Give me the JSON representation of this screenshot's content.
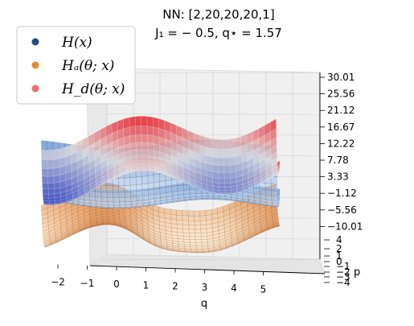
{
  "chart_data": {
    "type": "surface3d",
    "title_line1": "NN: [2,20,20,20,1]",
    "title_line2": "J₁ = − 0.5, q⋆ = 1.57",
    "xlabel": "q",
    "ylabel": "p",
    "zlabel": "",
    "xlim": [
      -2.5,
      5.5
    ],
    "ylim": [
      -4,
      4
    ],
    "zlim": [
      -10.01,
      30.01
    ],
    "x_ticks": [
      "−2",
      "−1",
      "0",
      "1",
      "2",
      "3",
      "4",
      "5"
    ],
    "p_ticks": [
      "4",
      "2",
      "1",
      "0",
      "−1",
      "−2",
      "−3",
      "−4"
    ],
    "z_ticks": [
      "30.01",
      "25.56",
      "21.12",
      "16.67",
      "12.22",
      "7.78",
      "3.33",
      "−1.12",
      "−5.56",
      "−10.01"
    ],
    "legend": {
      "position": "upper-left",
      "entries": [
        {
          "label": "H(x)",
          "color": "#1f4e79"
        },
        {
          "label": "Hₐ(θ; x)",
          "color": "#e8882f"
        },
        {
          "label": "H_d(θ; x)",
          "color": "#ef6f6f"
        }
      ]
    },
    "series": [
      {
        "key": "H",
        "colormap": "Blues",
        "formula": "1 - cos(q) + 0.5*p^2"
      },
      {
        "key": "Ha",
        "colormap": "Oranges",
        "formula": "learned"
      },
      {
        "key": "Hd",
        "colormap": "coolwarm",
        "formula": "learned"
      }
    ]
  }
}
